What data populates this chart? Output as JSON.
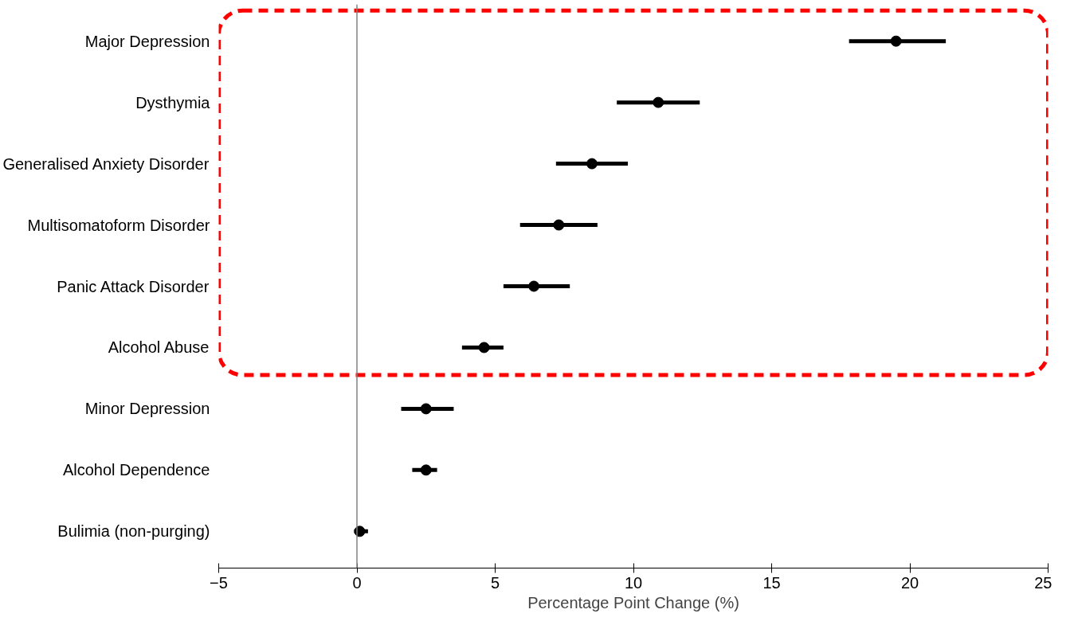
{
  "chart_data": {
    "type": "scatter",
    "orientation": "horizontal",
    "xlabel": "Percentage Point Change (%)",
    "categories": [
      "Major Depression",
      "Dysthymia",
      "Generalised Anxiety Disorder",
      "Multisomatoform Disorder",
      "Panic Attack Disorder",
      "Alcohol Abuse",
      "Minor Depression",
      "Alcohol Dependence",
      "Bulimia (non-purging)"
    ],
    "series": [
      {
        "color": "#000000",
        "values": [
          19.5,
          10.9,
          8.5,
          7.3,
          6.4,
          4.6,
          2.5,
          2.5,
          0.1
        ],
        "errors": [
          [
            17.8,
            21.3
          ],
          [
            9.4,
            12.4
          ],
          [
            7.2,
            9.8
          ],
          [
            5.9,
            8.7
          ],
          [
            5.3,
            7.7
          ],
          [
            3.8,
            5.3
          ],
          [
            1.6,
            3.5
          ],
          [
            2.0,
            2.9
          ],
          [
            -0.1,
            0.4
          ]
        ]
      }
    ],
    "xlim": [
      -5,
      25
    ],
    "xticks": [
      -5,
      0,
      5,
      10,
      15,
      20,
      25
    ],
    "marker": "circle",
    "grid": false,
    "ref_lines": [
      {
        "axis": "x",
        "value": 0,
        "color": "#808080"
      }
    ]
  }
}
